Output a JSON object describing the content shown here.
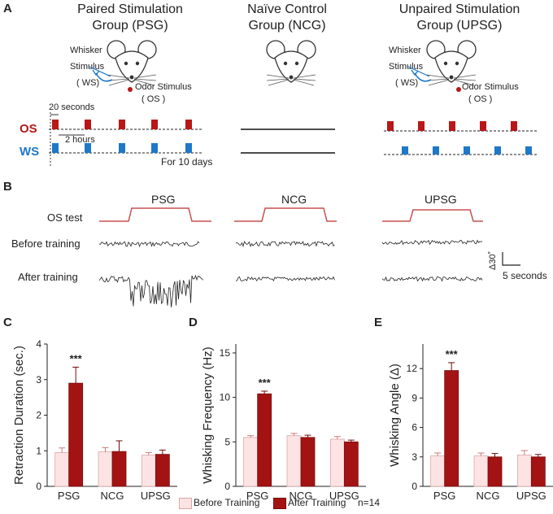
{
  "panel_a": {
    "letter": "A",
    "groups": [
      {
        "title_line1": "Paired Stimulation",
        "title_line2": "Group (PSG)"
      },
      {
        "title_line1": "Naïve Control",
        "title_line2": "Group (NCG)"
      },
      {
        "title_line1": "Unpaired Stimulation",
        "title_line2": "Group (UPSG)"
      }
    ],
    "whisker_stimulus": "Whisker Stimulus ( WS)",
    "whisker_line1": "Whisker",
    "whisker_line2": "Stimulus",
    "whisker_line3": "( WS)",
    "odor_line1": "Odor Stimulus",
    "odor_line2": "( OS )",
    "interval_label": "20 seconds",
    "gap_label": "2 hours",
    "os_label": "OS",
    "ws_label": "WS",
    "duration_label": "For 10 days",
    "colors": {
      "os": "#b81818",
      "ws": "#1f78c8"
    }
  },
  "panel_b": {
    "letter": "B",
    "group_labels": [
      "PSG",
      "NCG",
      "UPSG"
    ],
    "row_labels": [
      "OS test",
      "Before training",
      "After training"
    ],
    "scale_y": "Δ30˚",
    "scale_x": "5 seconds"
  },
  "legend": {
    "before": "Before Training",
    "after": "After Training",
    "n": "n=14",
    "colors": {
      "before": "#fde3e3",
      "after": "#a31313"
    }
  },
  "chart_data": [
    {
      "letter": "C",
      "type": "bar",
      "categories": [
        "PSG",
        "NCG",
        "UPSG"
      ],
      "series": [
        {
          "name": "Before Training",
          "values": [
            0.95,
            0.97,
            0.88
          ],
          "errors": [
            0.13,
            0.12,
            0.07
          ]
        },
        {
          "name": "After Training",
          "values": [
            2.9,
            0.98,
            0.9
          ],
          "errors": [
            0.45,
            0.3,
            0.12
          ]
        }
      ],
      "ylabel": "Retraction Duration (sec.)",
      "ylim": [
        0,
        4
      ],
      "yticks": [
        0,
        1,
        2,
        3,
        4
      ],
      "significance": [
        {
          "category": "PSG",
          "label": "***"
        }
      ]
    },
    {
      "letter": "D",
      "type": "bar",
      "categories": [
        "PSG",
        "NCG",
        "UPSG"
      ],
      "series": [
        {
          "name": "Before Training",
          "values": [
            5.5,
            5.7,
            5.3
          ],
          "errors": [
            0.2,
            0.25,
            0.3
          ]
        },
        {
          "name": "After Training",
          "values": [
            10.4,
            5.5,
            5.0
          ],
          "errors": [
            0.3,
            0.25,
            0.2
          ]
        }
      ],
      "ylabel": "Whisking  Frequency (Hz)",
      "ylim": [
        0,
        16
      ],
      "yticks": [
        0,
        5,
        10,
        15
      ],
      "significance": [
        {
          "category": "PSG",
          "label": "***"
        }
      ]
    },
    {
      "letter": "E",
      "type": "bar",
      "categories": [
        "PSG",
        "NCG",
        "UPSG"
      ],
      "series": [
        {
          "name": "Before Training",
          "values": [
            3.1,
            3.1,
            3.2
          ],
          "errors": [
            0.3,
            0.3,
            0.45
          ]
        },
        {
          "name": "After Training",
          "values": [
            11.8,
            3.0,
            3.0
          ],
          "errors": [
            0.8,
            0.35,
            0.25
          ]
        }
      ],
      "ylabel": "Whisking Angle (Δ)",
      "ylim": [
        0,
        14.5
      ],
      "yticks": [
        0,
        3,
        6,
        9,
        12
      ],
      "significance": [
        {
          "category": "PSG",
          "label": "***"
        }
      ]
    }
  ]
}
